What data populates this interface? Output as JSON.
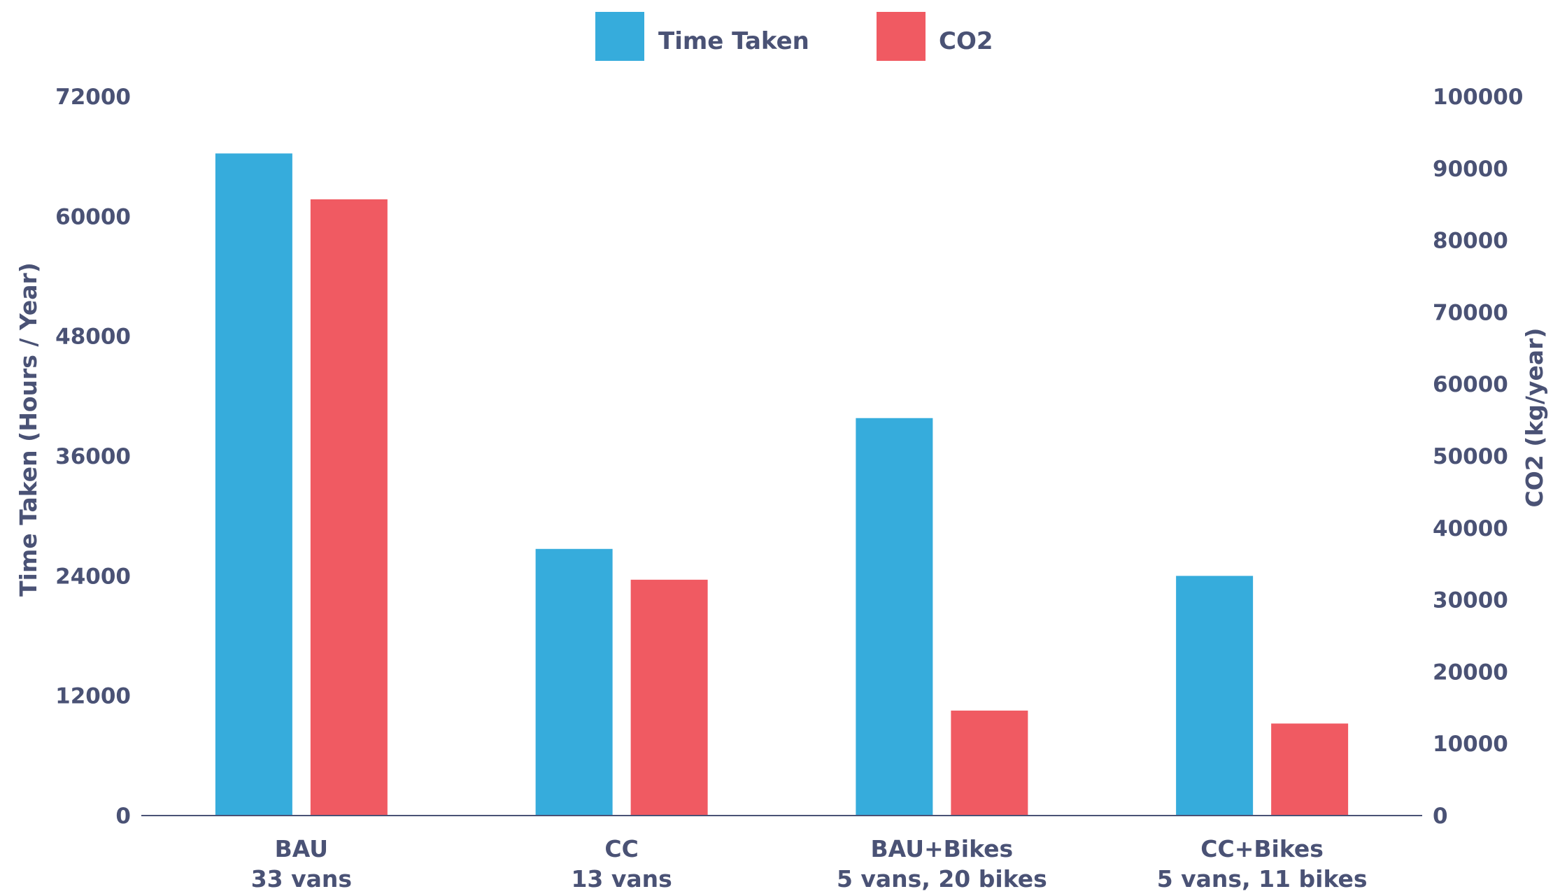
{
  "colors": {
    "time_taken": "#36ACDC",
    "co2": "#F05A62",
    "text": "#4A5275",
    "axis": "#4A5275",
    "background": "#FFFFFF"
  },
  "chart_data": {
    "type": "bar",
    "legend": {
      "placement": "top-center",
      "items": [
        {
          "label": "Time Taken",
          "color_key": "time_taken"
        },
        {
          "label": "CO2",
          "color_key": "co2"
        }
      ]
    },
    "categories": [
      {
        "line1": "BAU",
        "line2": "33 vans"
      },
      {
        "line1": "CC",
        "line2": "13 vans"
      },
      {
        "line1": "BAU+Bikes",
        "line2": "5 vans, 20 bikes"
      },
      {
        "line1": "CC+Bikes",
        "line2": "5 vans, 11 bikes"
      }
    ],
    "series": [
      {
        "name": "Time Taken",
        "axis": "left",
        "color_key": "time_taken",
        "values": [
          66300,
          26700,
          39800,
          24000
        ]
      },
      {
        "name": "CO2",
        "axis": "right",
        "color_key": "co2",
        "values": [
          85700,
          32800,
          14600,
          12800
        ]
      }
    ],
    "y_left": {
      "label": "Time Taken (Hours / Year)",
      "range": [
        0,
        72000
      ],
      "ticks": [
        "0",
        "12000",
        "24000",
        "36000",
        "48000",
        "60000",
        "72000"
      ]
    },
    "y_right": {
      "label": "CO2 (kg/year)",
      "range": [
        0,
        100000
      ],
      "ticks": [
        "0",
        "10000",
        "20000",
        "30000",
        "40000",
        "50000",
        "60000",
        "70000",
        "80000",
        "90000",
        "100000"
      ]
    },
    "grid": false
  }
}
